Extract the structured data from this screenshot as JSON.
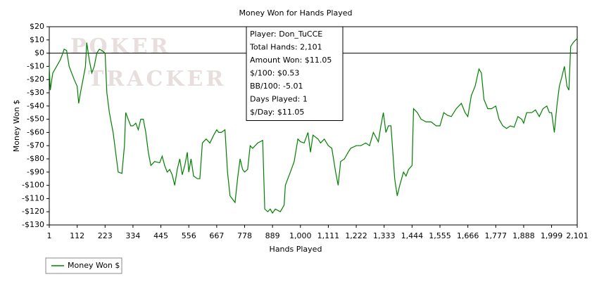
{
  "chart_data": {
    "type": "line",
    "title": "Money Won for Hands Played",
    "xlabel": "Hands Played",
    "ylabel": "Money Won $",
    "watermark": [
      "POKER",
      "TRACKER"
    ],
    "annotation": [
      "Player: Don_TuCCE",
      "Total Hands: 2,101",
      "Amount Won: $11.05",
      "$/100: $0.53",
      "BB/100: -5.01",
      "Days Played: 1",
      "$/Day: $11.05"
    ],
    "xlim": [
      1,
      2101
    ],
    "xticks": [
      1,
      112,
      223,
      334,
      445,
      556,
      667,
      778,
      889,
      {
        "value": 1000,
        "label": "1,000"
      },
      {
        "value": 1111,
        "label": "1,111"
      },
      {
        "value": 1222,
        "label": "1,222"
      },
      {
        "value": 1333,
        "label": "1,333"
      },
      {
        "value": 1444,
        "label": "1,444"
      },
      {
        "value": 1555,
        "label": "1,555"
      },
      {
        "value": 1666,
        "label": "1,666"
      },
      {
        "value": 1777,
        "label": "1,777"
      },
      {
        "value": 1888,
        "label": "1,888"
      },
      {
        "value": 1999,
        "label": "1,999"
      },
      {
        "value": 2101,
        "label": "2,101"
      }
    ],
    "ylim": [
      -130,
      20
    ],
    "yticks": [
      {
        "value": 20,
        "label": "$20"
      },
      {
        "value": 10,
        "label": "$10"
      },
      {
        "value": 0,
        "label": "$0"
      },
      {
        "value": -10,
        "label": "-$10"
      },
      {
        "value": -20,
        "label": "-$20"
      },
      {
        "value": -30,
        "label": "-$30"
      },
      {
        "value": -40,
        "label": "-$40"
      },
      {
        "value": -50,
        "label": "-$50"
      },
      {
        "value": -60,
        "label": "-$60"
      },
      {
        "value": -70,
        "label": "-$70"
      },
      {
        "value": -80,
        "label": "-$80"
      },
      {
        "value": -90,
        "label": "-$90"
      },
      {
        "value": -100,
        "label": "-$100"
      },
      {
        "value": -110,
        "label": "-$110"
      },
      {
        "value": -120,
        "label": "-$120"
      },
      {
        "value": -130,
        "label": "-$130"
      }
    ],
    "zeroline": true,
    "legend": "bottom-left",
    "series": [
      {
        "name": "Money Won $",
        "color": "#008000",
        "x": [
          1,
          5,
          15,
          30,
          45,
          55,
          60,
          70,
          80,
          90,
          100,
          112,
          118,
          125,
          135,
          145,
          150,
          160,
          170,
          180,
          190,
          200,
          210,
          223,
          230,
          240,
          250,
          255,
          265,
          275,
          290,
          300,
          305,
          315,
          325,
          334,
          345,
          355,
          365,
          375,
          385,
          395,
          405,
          420,
          440,
          450,
          460,
          470,
          480,
          490,
          500,
          510,
          520,
          530,
          540,
          550,
          556,
          565,
          575,
          590,
          600,
          610,
          625,
          640,
          655,
          667,
          675,
          685,
          700,
          710,
          720,
          740,
          750,
          760,
          770,
          778,
          790,
          800,
          810,
          830,
          850,
          858,
          870,
          880,
          889,
          900,
          920,
          935,
          940,
          950,
          960,
          975,
          990,
          1000,
          1015,
          1030,
          1040,
          1050,
          1070,
          1080,
          1095,
          1111,
          1125,
          1140,
          1150,
          1160,
          1175,
          1190,
          1200,
          1222,
          1240,
          1260,
          1275,
          1290,
          1310,
          1320,
          1330,
          1340,
          1350,
          1360,
          1375,
          1385,
          1395,
          1410,
          1420,
          1430,
          1444,
          1450,
          1465,
          1480,
          1500,
          1520,
          1540,
          1555,
          1570,
          1585,
          1600,
          1620,
          1640,
          1655,
          1666,
          1680,
          1695,
          1710,
          1720,
          1730,
          1745,
          1760,
          1777,
          1790,
          1805,
          1820,
          1835,
          1850,
          1865,
          1880,
          1888,
          1900,
          1920,
          1935,
          1950,
          1965,
          1980,
          1990,
          1999,
          2010,
          2020,
          2030,
          2040,
          2050,
          2060,
          2068,
          2075,
          2085,
          2095,
          2101
        ],
        "values": [
          -10,
          -28,
          -15,
          -10,
          -5,
          0,
          3,
          2,
          -10,
          -15,
          -20,
          -25,
          -38,
          -30,
          -20,
          -10,
          8,
          -5,
          -15,
          -10,
          0,
          3,
          2,
          0,
          -30,
          -45,
          -55,
          -60,
          -75,
          -90,
          -91,
          -70,
          -45,
          -50,
          -55,
          -55,
          -53,
          -58,
          -50,
          -50,
          -60,
          -75,
          -85,
          -82,
          -83,
          -78,
          -85,
          -90,
          -88,
          -92,
          -100,
          -88,
          -80,
          -92,
          -85,
          -75,
          -90,
          -80,
          -93,
          -95,
          -95,
          -68,
          -65,
          -68,
          -62,
          -58,
          -60,
          -60,
          -58,
          -90,
          -108,
          -113,
          -95,
          -80,
          -88,
          -90,
          -88,
          -70,
          -72,
          -68,
          -66,
          -118,
          -120,
          -118,
          -121,
          -118,
          -120,
          -115,
          -100,
          -95,
          -90,
          -82,
          -65,
          -67,
          -68,
          -60,
          -75,
          -62,
          -65,
          -68,
          -65,
          -70,
          -72,
          -90,
          -100,
          -82,
          -80,
          -75,
          -72,
          -70,
          -70,
          -68,
          -70,
          -60,
          -67,
          -55,
          -45,
          -60,
          -55,
          -55,
          -95,
          -108,
          -100,
          -90,
          -93,
          -88,
          -85,
          -42,
          -45,
          -50,
          -52,
          -52,
          -55,
          -55,
          -45,
          -47,
          -48,
          -42,
          -38,
          -45,
          -48,
          -32,
          -25,
          -12,
          -15,
          -35,
          -42,
          -42,
          -40,
          -50,
          -55,
          -57,
          -55,
          -56,
          -48,
          -50,
          -53,
          -45,
          -45,
          -43,
          -48,
          -42,
          -40,
          -45,
          -45,
          -60,
          -40,
          -25,
          -18,
          -10,
          -25,
          -28,
          5,
          8,
          10,
          11.05
        ]
      }
    ]
  }
}
